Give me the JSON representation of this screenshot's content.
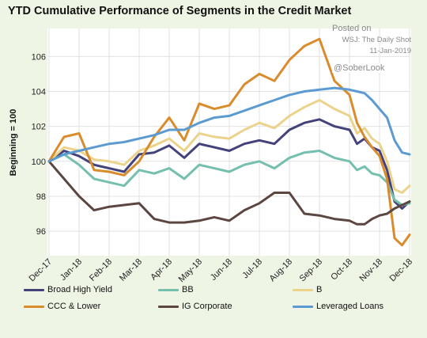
{
  "chart_data": {
    "type": "line",
    "title": "YTD Cumulative Performance of Segments in the Credit Market",
    "ylabel": "Beginning = 100",
    "xlabel": "",
    "ylim": [
      94.6,
      107.6
    ],
    "yticks": [
      96,
      98,
      100,
      102,
      104,
      106
    ],
    "y_tick_labels": [
      "96",
      "98",
      "100",
      "102",
      "104",
      "106"
    ],
    "x_tick_labels": [
      "Dec-17",
      "Jan-18",
      "Feb-18",
      "Mar-18",
      "Apr-18",
      "May-18",
      "Jun-18",
      "Jul-18",
      "Aug-18",
      "Sep-18",
      "Oct-18",
      "Nov-18",
      "Dec-18"
    ],
    "x": [
      0,
      0.5,
      1,
      1.5,
      2,
      2.5,
      3,
      3.5,
      4,
      4.5,
      5,
      5.5,
      6,
      6.5,
      7,
      7.5,
      8,
      8.5,
      9,
      9.5,
      10,
      10.25,
      10.5,
      10.75,
      11,
      11.25,
      11.5,
      11.75,
      12
    ],
    "grid": true,
    "legend_position": "bottom",
    "series": [
      {
        "name": "Broad High Yield",
        "color": "#43427a",
        "values": [
          100.0,
          100.6,
          100.3,
          99.8,
          99.6,
          99.4,
          100.4,
          100.5,
          100.9,
          100.2,
          101.0,
          100.8,
          100.6,
          101.0,
          101.2,
          101.0,
          101.8,
          102.2,
          102.4,
          102.0,
          101.8,
          101.0,
          101.3,
          100.8,
          100.6,
          99.5,
          97.7,
          97.3,
          97.7
        ]
      },
      {
        "name": "BB",
        "color": "#74bfae",
        "values": [
          100.0,
          100.4,
          99.8,
          99.0,
          98.8,
          98.6,
          99.5,
          99.3,
          99.6,
          99.0,
          99.8,
          99.6,
          99.4,
          99.8,
          100.0,
          99.6,
          100.2,
          100.5,
          100.6,
          100.2,
          100.0,
          99.5,
          99.7,
          99.3,
          99.2,
          98.8,
          97.8,
          97.5,
          97.6
        ]
      },
      {
        "name": "B",
        "color": "#ecd38c",
        "values": [
          100.0,
          100.8,
          100.6,
          100.1,
          100.0,
          99.8,
          100.6,
          100.9,
          101.3,
          100.6,
          101.6,
          101.4,
          101.3,
          101.8,
          102.2,
          101.9,
          102.6,
          103.1,
          103.5,
          103.0,
          102.6,
          101.6,
          101.9,
          101.3,
          101.0,
          100.0,
          98.4,
          98.2,
          98.6
        ]
      },
      {
        "name": "CCC & Lower",
        "color": "#da8b2b",
        "values": [
          100.0,
          101.4,
          101.6,
          99.5,
          99.4,
          99.2,
          100.0,
          101.4,
          102.5,
          101.2,
          103.3,
          103.0,
          103.2,
          104.4,
          105.0,
          104.6,
          105.8,
          106.6,
          107.0,
          104.6,
          103.8,
          102.2,
          101.4,
          100.8,
          100.3,
          99.0,
          95.6,
          95.2,
          95.8
        ]
      },
      {
        "name": "IG Corporate",
        "color": "#5c4641",
        "values": [
          100.0,
          99.0,
          98.0,
          97.2,
          97.4,
          97.5,
          97.6,
          96.7,
          96.5,
          96.5,
          96.6,
          96.8,
          96.6,
          97.2,
          97.6,
          98.2,
          98.2,
          97.0,
          96.9,
          96.7,
          96.6,
          96.4,
          96.4,
          96.7,
          96.9,
          97.0,
          97.3,
          97.5,
          97.7
        ]
      },
      {
        "name": "Leveraged Loans",
        "color": "#5b9bd1",
        "values": [
          100.0,
          100.4,
          100.6,
          100.8,
          101.0,
          101.1,
          101.3,
          101.5,
          101.8,
          101.8,
          102.2,
          102.5,
          102.6,
          102.9,
          103.2,
          103.5,
          103.8,
          104.0,
          104.1,
          104.2,
          104.1,
          104.0,
          103.9,
          103.5,
          103.0,
          102.5,
          101.2,
          100.5,
          100.4
        ]
      }
    ]
  },
  "source": {
    "posted_on": "Posted on",
    "name": "WSJ: The Daily Shot",
    "date": "11-Jan-2019",
    "handle": "@SoberLook"
  }
}
